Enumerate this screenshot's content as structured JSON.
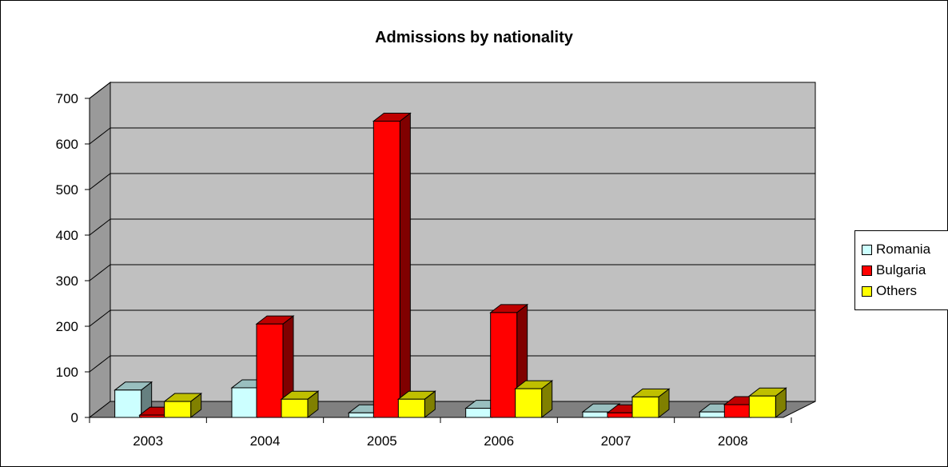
{
  "chart_data": {
    "type": "bar",
    "title": "Admissions by nationality",
    "categories": [
      "2003",
      "2004",
      "2005",
      "2006",
      "2007",
      "2008"
    ],
    "series": [
      {
        "name": "Romania",
        "values": [
          60,
          65,
          10,
          20,
          12,
          12
        ]
      },
      {
        "name": "Bulgaria",
        "values": [
          5,
          205,
          650,
          230,
          10,
          28
        ]
      },
      {
        "name": "Others",
        "values": [
          35,
          40,
          40,
          63,
          45,
          47
        ]
      }
    ],
    "ylim": [
      0,
      700
    ],
    "yticks": [
      0,
      100,
      200,
      300,
      400,
      500,
      600,
      700
    ],
    "grid": true,
    "legend_position": "right",
    "style": "3d-clustered-column"
  },
  "colors": {
    "Romania": "#ccffff",
    "Bulgaria": "#ff0000",
    "Others": "#ffff00",
    "wall": "#c0c0c0",
    "floor": "#808080"
  }
}
